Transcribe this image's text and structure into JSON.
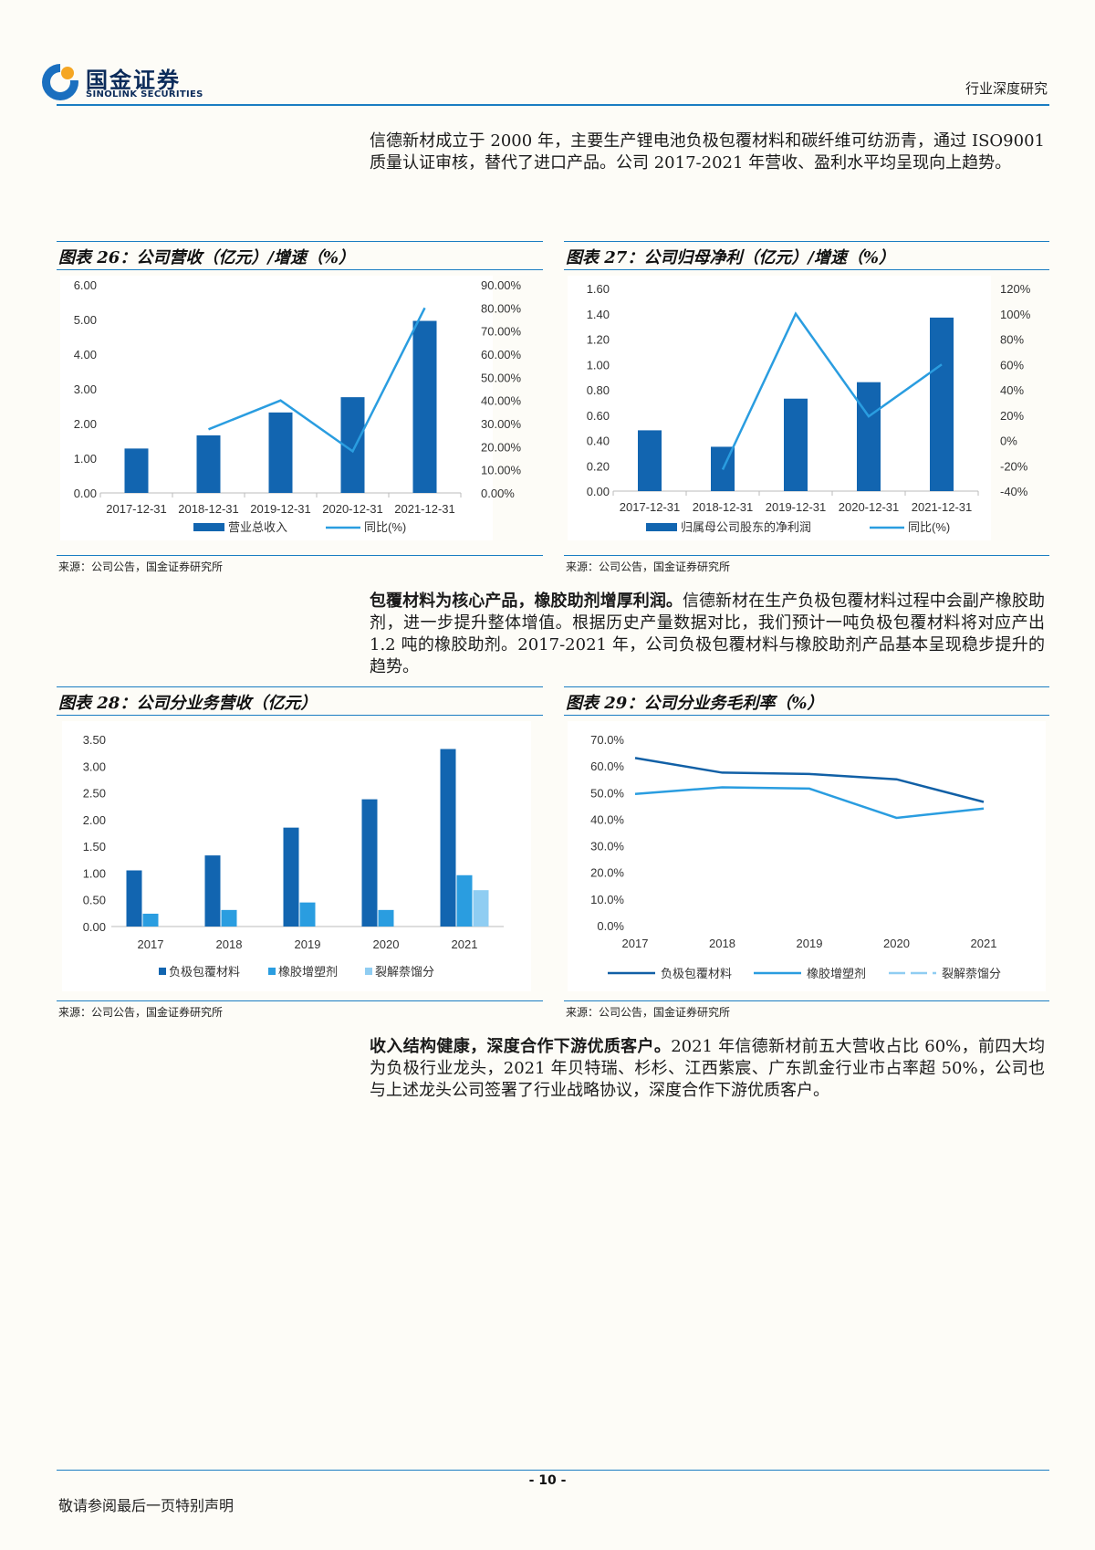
{
  "header": {
    "logo_cn": "国金证券",
    "logo_en": "SINOLINK SECURITIES",
    "report_type": "行业深度研究"
  },
  "paragraphs": {
    "p1": "信德新材成立于 2000 年，主要生产锂电池负极包覆材料和碳纤维可纺沥青，通过 ISO9001 质量认证审核，替代了进口产品。公司 2017-2021 年营收、盈利水平均呈现向上趋势。",
    "p2_bold": "包覆材料为核心产品，橡胶助剂增厚利润。",
    "p2_rest": "信德新材在生产负极包覆材料过程中会副产橡胶助剂，进一步提升整体增值。根据历史产量数据对比，我们预计一吨负极包覆材料将对应产出 1.2 吨的橡胶助剂。2017-2021 年，公司负极包覆材料与橡胶助剂产品基本呈现稳步提升的趋势。",
    "p3_bold": "收入结构健康，深度合作下游优质客户。",
    "p3_rest": "2021 年信德新材前五大营收占比 60%，前四大均为负极行业龙头，2021 年贝特瑞、杉杉、江西紫宸、广东凯金行业市占率超 50%，公司也与上述龙头公司签署了行业战略协议，深度合作下游优质客户。"
  },
  "figures": {
    "fig26": {
      "title": "图表 26：公司营收（亿元）/增速（%）",
      "source": "来源：公司公告，国金证券研究所"
    },
    "fig27": {
      "title": "图表 27：公司归母净利（亿元）/增速（%）",
      "source": "来源：公司公告，国金证券研究所"
    },
    "fig28": {
      "title": "图表 28：公司分业务营收（亿元）",
      "source": "来源：公司公告，国金证券研究所"
    },
    "fig29": {
      "title": "图表 29：公司分业务毛利率（%）",
      "source": "来源：公司公告，国金证券研究所"
    }
  },
  "chart_data": [
    {
      "id": "fig26",
      "type": "bar",
      "categories": [
        "2017-12-31",
        "2018-12-31",
        "2019-12-31",
        "2020-12-31",
        "2021-12-31"
      ],
      "series": [
        {
          "name": "营业总收入",
          "type": "bar",
          "axis": "left",
          "values": [
            1.28,
            1.66,
            2.32,
            2.76,
            4.96
          ]
        },
        {
          "name": "同比(%)",
          "type": "line",
          "axis": "right",
          "values": [
            null,
            27.5,
            40.0,
            18.0,
            80.0
          ]
        }
      ],
      "left_axis": {
        "min": 0,
        "max": 6,
        "ticks": [
          "0.00",
          "1.00",
          "2.00",
          "3.00",
          "4.00",
          "5.00",
          "6.00"
        ]
      },
      "right_axis": {
        "min": 0,
        "max": 90,
        "ticks": [
          "0.00%",
          "10.00%",
          "20.00%",
          "30.00%",
          "40.00%",
          "50.00%",
          "60.00%",
          "70.00%",
          "80.00%",
          "90.00%"
        ]
      },
      "legend": "bottom",
      "colors": {
        "bar": "#1265b0",
        "line": "#2a9de0"
      }
    },
    {
      "id": "fig27",
      "type": "bar",
      "categories": [
        "2017-12-31",
        "2018-12-31",
        "2019-12-31",
        "2020-12-31",
        "2021-12-31"
      ],
      "series": [
        {
          "name": "归属母公司股东的净利润",
          "type": "bar",
          "axis": "left",
          "values": [
            0.48,
            0.35,
            0.73,
            0.86,
            1.37
          ]
        },
        {
          "name": "同比(%)",
          "type": "line",
          "axis": "right",
          "values": [
            null,
            -23,
            100,
            19,
            60
          ]
        }
      ],
      "left_axis": {
        "min": 0,
        "max": 1.6,
        "ticks": [
          "0.00",
          "0.20",
          "0.40",
          "0.60",
          "0.80",
          "1.00",
          "1.20",
          "1.40",
          "1.60"
        ]
      },
      "right_axis": {
        "min": -40,
        "max": 120,
        "ticks": [
          "-40%",
          "-20%",
          "0%",
          "20%",
          "40%",
          "60%",
          "80%",
          "100%",
          "120%"
        ]
      },
      "legend": "bottom",
      "colors": {
        "bar": "#1265b0",
        "line": "#2a9de0"
      }
    },
    {
      "id": "fig28",
      "type": "bar",
      "categories": [
        "2017",
        "2018",
        "2019",
        "2020",
        "2021"
      ],
      "series": [
        {
          "name": "负极包覆材料",
          "values": [
            1.05,
            1.33,
            1.85,
            2.38,
            3.32
          ]
        },
        {
          "name": "橡胶增塑剂",
          "values": [
            0.24,
            0.31,
            0.45,
            0.31,
            0.96
          ]
        },
        {
          "name": "裂解萘馏分",
          "values": [
            null,
            null,
            null,
            null,
            0.68
          ]
        }
      ],
      "y_axis": {
        "min": 0,
        "max": 3.5,
        "ticks": [
          "0.00",
          "0.50",
          "1.00",
          "1.50",
          "2.00",
          "2.50",
          "3.00",
          "3.50"
        ]
      },
      "legend": "bottom",
      "colors": [
        "#1265b0",
        "#2a9de0",
        "#8fcdf2"
      ]
    },
    {
      "id": "fig29",
      "type": "line",
      "categories": [
        "2017",
        "2018",
        "2019",
        "2020",
        "2021"
      ],
      "series": [
        {
          "name": "负极包覆材料",
          "values": [
            63.0,
            57.5,
            57.0,
            55.0,
            46.5
          ]
        },
        {
          "name": "橡胶增塑剂",
          "values": [
            49.5,
            52.0,
            51.5,
            40.5,
            44.0
          ]
        },
        {
          "name": "裂解萘馏分",
          "values": [
            null,
            null,
            null,
            null,
            null
          ]
        }
      ],
      "y_axis": {
        "min": 0,
        "max": 70,
        "ticks": [
          "0.0%",
          "10.0%",
          "20.0%",
          "30.0%",
          "40.0%",
          "50.0%",
          "60.0%",
          "70.0%"
        ]
      },
      "legend": "bottom",
      "colors": [
        "#1160a6",
        "#2a9de0",
        "#8fcdf2"
      ]
    }
  ],
  "footer": {
    "page_number": "- 10 -",
    "note": "敬请参阅最后一页特别声明"
  }
}
